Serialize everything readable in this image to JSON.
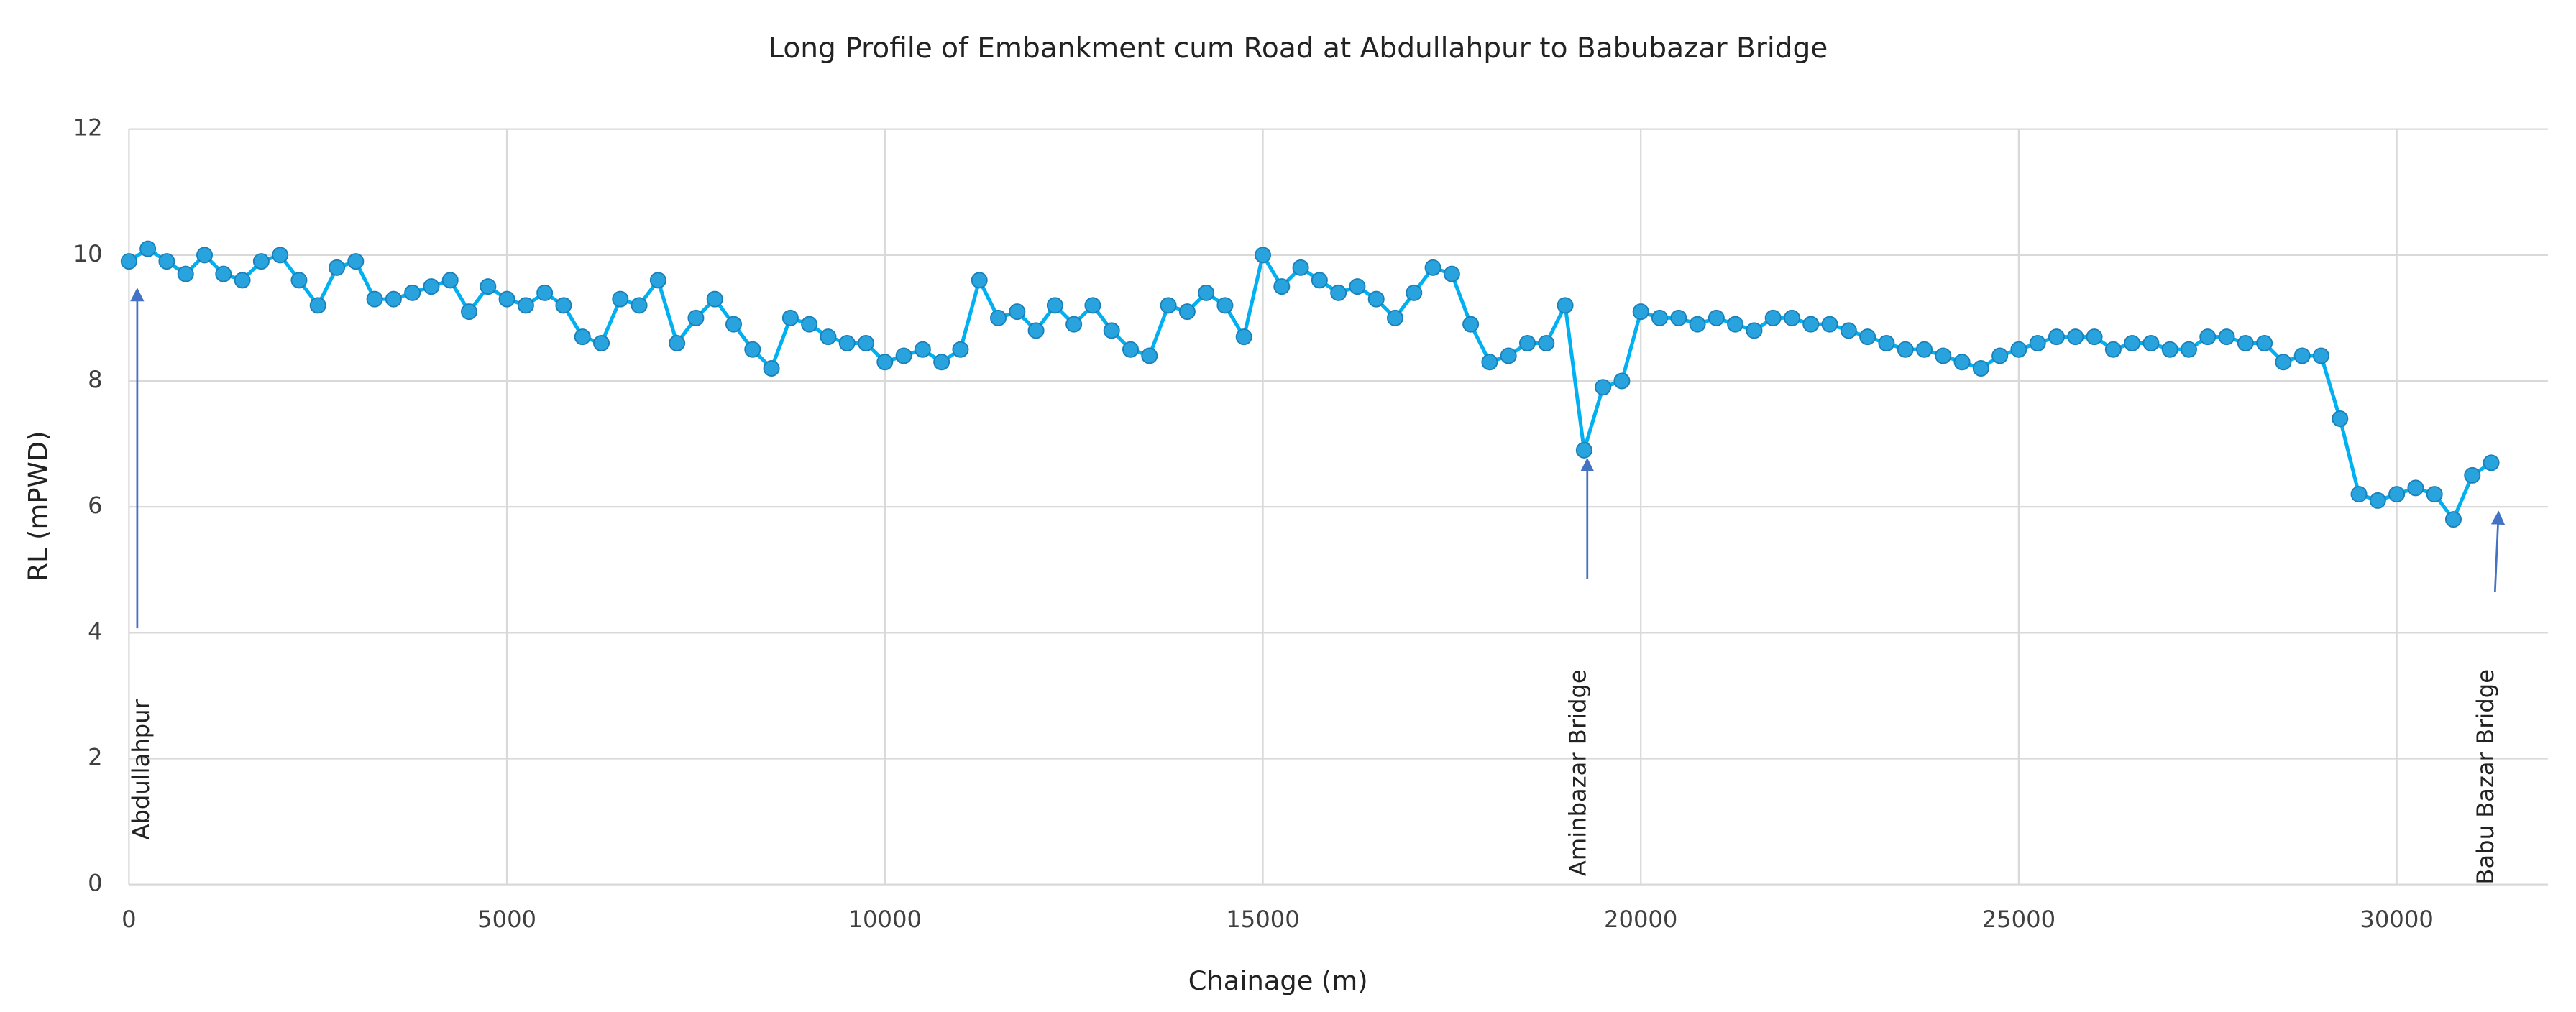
{
  "chart_data": {
    "type": "line",
    "title": "Long Profile of Embankment cum Road at Abdullahpur to Babubazar Bridge",
    "x_label": "Chainage (m)",
    "y_label": "RL (mPWD)",
    "xlim": [
      0,
      32000
    ],
    "xticks": [
      0,
      5000,
      10000,
      15000,
      20000,
      25000,
      30000
    ],
    "ylim": [
      0,
      12
    ],
    "yticks": [
      0,
      2,
      4,
      6,
      8,
      10,
      12
    ],
    "grid": true,
    "annotations": [
      {
        "text": "Abdullahpur"
      },
      {
        "text": "Aminbazar Bridge"
      },
      {
        "text": "Babu Bazar Bridge"
      }
    ],
    "x": [
      0,
      250,
      500,
      750,
      1000,
      1250,
      1500,
      1750,
      2000,
      2250,
      2500,
      2750,
      3000,
      3250,
      3500,
      3750,
      4000,
      4250,
      4500,
      4750,
      5000,
      5250,
      5500,
      5750,
      6000,
      6250,
      6500,
      6750,
      7000,
      7250,
      7500,
      7750,
      8000,
      8250,
      8500,
      8750,
      9000,
      9250,
      9500,
      9750,
      10000,
      10250,
      10500,
      10750,
      11000,
      11250,
      11500,
      11750,
      12000,
      12250,
      12500,
      12750,
      13000,
      13250,
      13500,
      13750,
      14000,
      14250,
      14500,
      14750,
      15000,
      15250,
      15500,
      15750,
      16000,
      16250,
      16500,
      16750,
      17000,
      17250,
      17500,
      17750,
      18000,
      18250,
      18500,
      18750,
      19000,
      19250,
      19500,
      19750,
      20000,
      20250,
      20500,
      20750,
      21000,
      21250,
      21500,
      21750,
      22000,
      22250,
      22500,
      22750,
      23000,
      23250,
      23500,
      23750,
      24000,
      24250,
      24500,
      24750,
      25000,
      25250,
      25500,
      25750,
      26000,
      26250,
      26500,
      26750,
      27000,
      27250,
      27500,
      27750,
      28000,
      28250,
      28500,
      28750,
      29000,
      29250,
      29500,
      29750,
      30000,
      30250,
      30500,
      30750,
      31000,
      31250
    ],
    "series": [
      {
        "name": "RL",
        "color": "#00b0f0",
        "marker_color": "#29a3dd",
        "values": [
          9.9,
          10.1,
          9.9,
          9.7,
          10.0,
          9.7,
          9.6,
          9.9,
          10.0,
          9.6,
          9.2,
          9.8,
          9.9,
          9.3,
          9.3,
          9.4,
          9.5,
          9.6,
          9.1,
          9.5,
          9.3,
          9.2,
          9.4,
          9.2,
          8.7,
          8.6,
          9.3,
          9.2,
          9.6,
          8.6,
          9.0,
          9.3,
          8.9,
          8.5,
          8.2,
          9.0,
          8.9,
          8.7,
          8.6,
          8.6,
          8.3,
          8.4,
          8.5,
          8.3,
          8.5,
          9.6,
          9.0,
          9.1,
          8.8,
          9.2,
          8.9,
          9.2,
          8.8,
          8.5,
          8.4,
          9.2,
          9.1,
          9.4,
          9.2,
          8.7,
          10.0,
          9.5,
          9.8,
          9.6,
          9.4,
          9.5,
          9.3,
          9.0,
          9.4,
          9.8,
          9.7,
          8.9,
          8.3,
          8.4,
          8.6,
          8.6,
          9.2,
          6.9,
          7.9,
          8.0,
          9.1,
          9.0,
          9.0,
          8.9,
          9.0,
          8.9,
          8.8,
          9.0,
          9.0,
          8.9,
          8.9,
          8.8,
          8.7,
          8.6,
          8.5,
          8.5,
          8.4,
          8.3,
          8.2,
          8.4,
          8.5,
          8.6,
          8.7,
          8.7,
          8.7,
          8.5,
          8.6,
          8.6,
          8.5,
          8.5,
          8.7,
          8.7,
          8.6,
          8.6,
          8.3,
          8.4,
          8.4,
          7.4,
          6.2,
          6.1,
          6.2,
          6.3,
          6.2,
          5.8,
          6.5,
          6.7
        ]
      }
    ]
  }
}
